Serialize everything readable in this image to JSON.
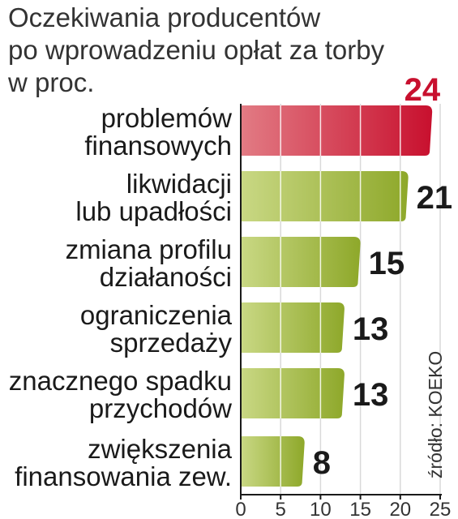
{
  "chart_data": {
    "type": "bar",
    "orientation": "horizontal",
    "title_lines": [
      "Oczekiwania producentów",
      "po wprowadzeniu opłat za torby",
      "w proc."
    ],
    "categories": [
      [
        "problemów",
        "finansowych"
      ],
      [
        "likwidacji",
        "lub upadłości"
      ],
      [
        "zmiana profilu",
        "działaności"
      ],
      [
        "ograniczenia",
        "sprzedaży"
      ],
      [
        "znacznego spadku",
        "przychodów"
      ],
      [
        "zwiększenia",
        "finansowania zew."
      ]
    ],
    "values": [
      24,
      21,
      15,
      13,
      13,
      8
    ],
    "xlim": [
      0,
      25
    ],
    "xticks": [
      0,
      5,
      10,
      15,
      20,
      25
    ],
    "grid": true,
    "source": "źródło: KOEKO",
    "colors": {
      "highlight": "#c8102e",
      "highlight_light": "#e27b84",
      "bar": "#95b02e",
      "bar_light": "#c9d884",
      "value_text": "#1a1a1a",
      "highlight_text": "#c8102e"
    }
  }
}
